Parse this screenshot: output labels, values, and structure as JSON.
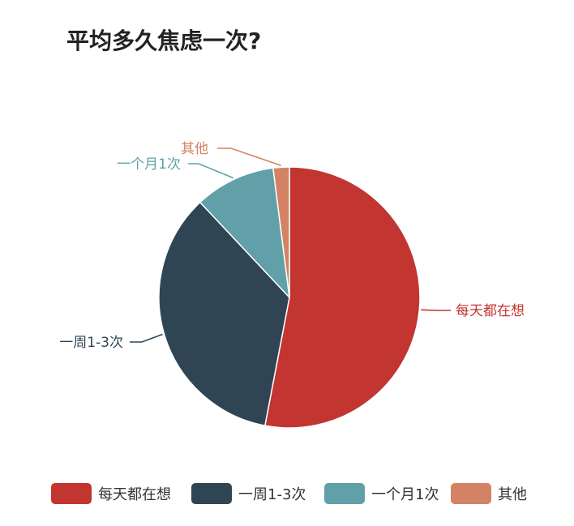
{
  "chart_data": {
    "type": "pie",
    "title": "平均多久焦虑一次?",
    "categories": [
      "每天都在想",
      "一周1-3次",
      "一个月1次",
      "其他"
    ],
    "values": [
      53,
      35,
      10,
      2
    ],
    "unit": "%",
    "colors": [
      "#c23531",
      "#2f4554",
      "#61a0a8",
      "#d48265"
    ],
    "legend_position": "bottom",
    "grid": false
  }
}
